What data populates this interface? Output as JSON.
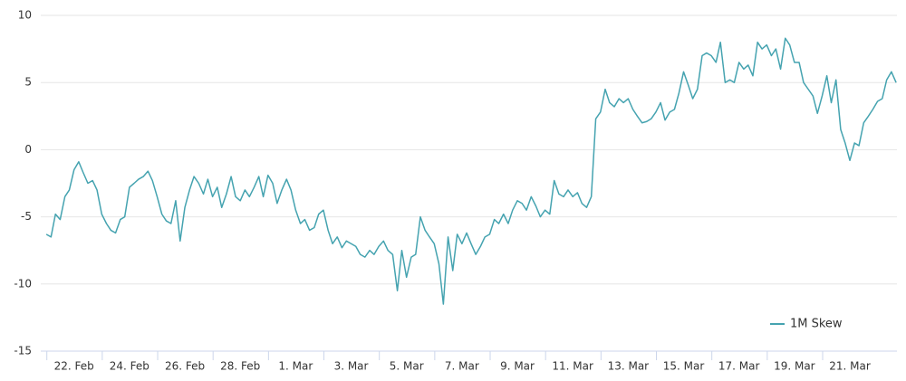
{
  "chart_data": {
    "type": "line",
    "x": [
      21,
      21.17,
      21.33,
      21.5,
      21.67,
      21.83,
      22,
      22.17,
      22.33,
      22.5,
      22.67,
      22.83,
      23,
      23.17,
      23.33,
      23.5,
      23.67,
      23.83,
      24,
      24.17,
      24.33,
      24.5,
      24.67,
      24.83,
      25,
      25.17,
      25.33,
      25.5,
      25.67,
      25.83,
      26,
      26.17,
      26.33,
      26.5,
      26.67,
      26.83,
      27,
      27.17,
      27.33,
      27.5,
      27.67,
      27.83,
      28,
      28.17,
      28.33,
      28.5,
      28.67,
      28.83,
      29,
      29.17,
      29.33,
      29.5,
      29.67,
      29.83,
      30,
      30.17,
      30.33,
      30.5,
      30.67,
      30.83,
      31,
      31.17,
      31.33,
      31.5,
      31.67,
      31.83,
      32,
      32.17,
      32.33,
      32.5,
      32.67,
      32.83,
      33,
      33.17,
      33.33,
      33.5,
      33.67,
      33.83,
      34,
      34.17,
      34.33,
      34.5,
      34.67,
      34.83,
      35,
      35.17,
      35.33,
      35.5,
      35.67,
      35.83,
      36,
      36.17,
      36.33,
      36.5,
      36.67,
      36.83,
      37,
      37.17,
      37.33,
      37.5,
      37.67,
      37.83,
      38,
      38.17,
      38.33,
      38.5,
      38.67,
      38.83,
      39,
      39.17,
      39.33,
      39.5,
      39.67,
      39.83,
      40,
      40.17,
      40.33,
      40.5,
      40.67,
      40.83,
      41,
      41.17,
      41.33,
      41.5,
      41.67,
      41.83,
      42,
      42.17,
      42.33,
      42.5,
      42.67,
      42.83,
      43,
      43.17,
      43.33,
      43.5,
      43.67,
      43.83,
      44,
      44.17,
      44.33,
      44.5,
      44.67,
      44.83,
      45,
      45.17,
      45.33,
      45.5,
      45.67,
      45.83,
      46,
      46.17,
      46.33,
      46.5,
      46.67,
      46.83,
      47,
      47.17,
      47.33,
      47.5,
      47.67,
      47.83,
      48,
      48.17,
      48.33,
      48.5,
      48.67,
      48.83,
      49,
      49.17,
      49.33,
      49.5,
      49.67,
      49.83,
      50,
      50.17,
      50.33,
      50.5,
      50.67,
      50.83,
      51,
      51.17,
      51.33,
      51.5,
      51.67
    ],
    "series": [
      {
        "name": "1M Skew",
        "color": "#45a3b0",
        "values": [
          -6.3,
          -6.5,
          -4.8,
          -5.2,
          -3.5,
          -3,
          -1.5,
          -0.9,
          -1.7,
          -2.5,
          -2.3,
          -3,
          -4.8,
          -5.5,
          -6,
          -6.2,
          -5.2,
          -5,
          -2.8,
          -2.5,
          -2.2,
          -2,
          -1.6,
          -2.3,
          -3.5,
          -4.8,
          -5.3,
          -5.5,
          -3.8,
          -6.8,
          -4.3,
          -3,
          -2,
          -2.5,
          -3.3,
          -2.2,
          -3.5,
          -2.8,
          -4.3,
          -3.3,
          -2,
          -3.5,
          -3.8,
          -3,
          -3.5,
          -2.8,
          -2,
          -3.5,
          -1.9,
          -2.5,
          -4,
          -3,
          -2.2,
          -3,
          -4.5,
          -5.5,
          -5.2,
          -6,
          -5.8,
          -4.8,
          -4.5,
          -6,
          -7,
          -6.5,
          -7.3,
          -6.8,
          -7,
          -7.2,
          -7.8,
          -8,
          -7.5,
          -7.8,
          -7.2,
          -6.8,
          -7.5,
          -7.8,
          -10.5,
          -7.5,
          -9.5,
          -8,
          -7.8,
          -5,
          -6,
          -6.5,
          -7,
          -8.5,
          -11.5,
          -6.5,
          -9,
          -6.3,
          -7,
          -6.2,
          -7,
          -7.8,
          -7.2,
          -6.5,
          -6.3,
          -5.2,
          -5.5,
          -4.8,
          -5.5,
          -4.5,
          -3.8,
          -4,
          -4.5,
          -3.5,
          -4.2,
          -5,
          -4.5,
          -4.8,
          -2.3,
          -3.3,
          -3.5,
          -3,
          -3.5,
          -3.2,
          -4,
          -4.3,
          -3.5,
          2.3,
          2.8,
          4.5,
          3.5,
          3.2,
          3.8,
          3.5,
          3.8,
          3,
          2.5,
          2,
          2.1,
          2.3,
          2.8,
          3.5,
          2.2,
          2.8,
          3,
          4.2,
          5.8,
          4.8,
          3.8,
          4.5,
          7,
          7.2,
          7,
          6.5,
          8,
          5,
          5.2,
          5,
          6.5,
          6,
          6.3,
          5.5,
          8,
          7.5,
          7.8,
          7,
          7.5,
          6,
          8.3,
          7.8,
          6.5,
          6.5,
          5,
          4.5,
          4,
          2.7,
          4,
          5.5,
          3.5,
          5.2,
          1.5,
          0.5,
          -0.8,
          0.5,
          0.3,
          2,
          2.5,
          3,
          3.6,
          3.8,
          5.2,
          5.8,
          5
        ]
      }
    ],
    "xlim": [
      20.8,
      51.7
    ],
    "xticks": [
      {
        "value": 22,
        "label": "22. Feb"
      },
      {
        "value": 24,
        "label": "24. Feb"
      },
      {
        "value": 26,
        "label": "26. Feb"
      },
      {
        "value": 28,
        "label": "28. Feb"
      },
      {
        "value": 30,
        "label": "1. Mar"
      },
      {
        "value": 32,
        "label": "3. Mar"
      },
      {
        "value": 34,
        "label": "5. Mar"
      },
      {
        "value": 36,
        "label": "7. Mar"
      },
      {
        "value": 38,
        "label": "9. Mar"
      },
      {
        "value": 40,
        "label": "11. Mar"
      },
      {
        "value": 42,
        "label": "13. Mar"
      },
      {
        "value": 44,
        "label": "15. Mar"
      },
      {
        "value": 46,
        "label": "17. Mar"
      },
      {
        "value": 48,
        "label": "19. Mar"
      },
      {
        "value": 50,
        "label": "21. Mar"
      }
    ],
    "ylim": [
      -15,
      10
    ],
    "yticks": [
      -15,
      -10,
      -5,
      0,
      5,
      10
    ],
    "grid": true,
    "legend": "bottom-right"
  }
}
